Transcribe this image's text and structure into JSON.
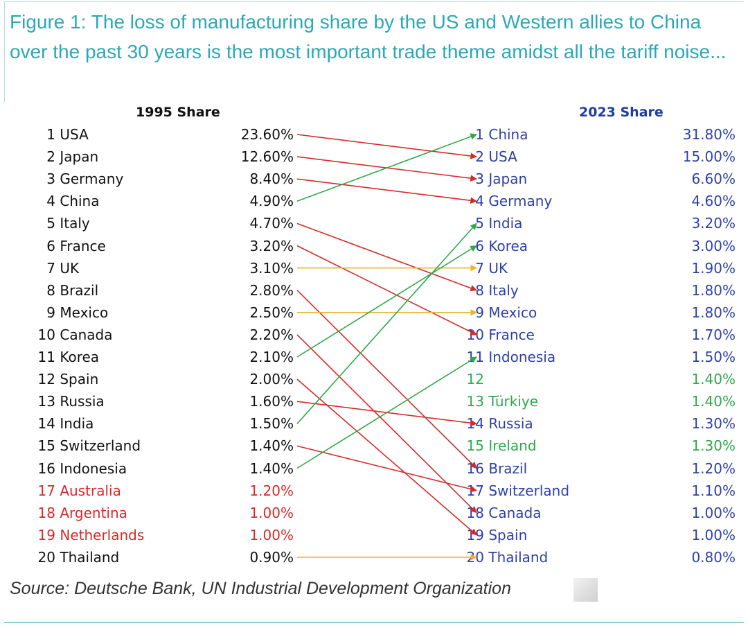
{
  "title": "Figure 1: The loss of manufacturing share by the US and Western allies to China over the past 30 years is the most important trade theme amidst all the tariff noise...",
  "source": "Source: Deutsche Bank, UN Industrial Development Organization",
  "chart_data": {
    "type": "slope-ranking",
    "left_title": "1995 Share",
    "right_title": "2023 Share",
    "colors": {
      "dark": "#111111",
      "red": "#d62a2a",
      "blue": "#2d3fa8",
      "green": "#2ea84a",
      "rise": "#2ea84a",
      "fall": "#d62a2a",
      "flat": "#e8b62a"
    },
    "left": [
      {
        "rank": "1",
        "country": "USA",
        "share": "23.60%",
        "color": "dark"
      },
      {
        "rank": "2",
        "country": "Japan",
        "share": "12.60%",
        "color": "dark"
      },
      {
        "rank": "3",
        "country": "Germany",
        "share": "8.40%",
        "color": "dark"
      },
      {
        "rank": "4",
        "country": "China",
        "share": "4.90%",
        "color": "dark"
      },
      {
        "rank": "5",
        "country": "Italy",
        "share": "4.70%",
        "color": "dark"
      },
      {
        "rank": "6",
        "country": "France",
        "share": "3.20%",
        "color": "dark"
      },
      {
        "rank": "7",
        "country": "UK",
        "share": "3.10%",
        "color": "dark"
      },
      {
        "rank": "8",
        "country": "Brazil",
        "share": "2.80%",
        "color": "dark"
      },
      {
        "rank": "9",
        "country": "Mexico",
        "share": "2.50%",
        "color": "dark"
      },
      {
        "rank": "10",
        "country": "Canada",
        "share": "2.20%",
        "color": "dark"
      },
      {
        "rank": "11",
        "country": "Korea",
        "share": "2.10%",
        "color": "dark"
      },
      {
        "rank": "12",
        "country": "Spain",
        "share": "2.00%",
        "color": "dark"
      },
      {
        "rank": "13",
        "country": "Russia",
        "share": "1.60%",
        "color": "dark"
      },
      {
        "rank": "14",
        "country": "India",
        "share": "1.50%",
        "color": "dark"
      },
      {
        "rank": "15",
        "country": "Switzerland",
        "share": "1.40%",
        "color": "dark"
      },
      {
        "rank": "16",
        "country": "Indonesia",
        "share": "1.40%",
        "color": "dark"
      },
      {
        "rank": "17",
        "country": "Australia",
        "share": "1.20%",
        "color": "red"
      },
      {
        "rank": "18",
        "country": "Argentina",
        "share": "1.00%",
        "color": "red"
      },
      {
        "rank": "19",
        "country": "Netherlands",
        "share": "1.00%",
        "color": "red"
      },
      {
        "rank": "20",
        "country": "Thailand",
        "share": "0.90%",
        "color": "dark"
      }
    ],
    "right": [
      {
        "rank": "1",
        "country": "China",
        "share": "31.80%",
        "color": "blue"
      },
      {
        "rank": "2",
        "country": "USA",
        "share": "15.00%",
        "color": "blue"
      },
      {
        "rank": "3",
        "country": "Japan",
        "share": "6.60%",
        "color": "blue"
      },
      {
        "rank": "4",
        "country": "Germany",
        "share": "4.60%",
        "color": "blue"
      },
      {
        "rank": "5",
        "country": "India",
        "share": "3.20%",
        "color": "blue"
      },
      {
        "rank": "6",
        "country": "Korea",
        "share": "3.00%",
        "color": "blue"
      },
      {
        "rank": "7",
        "country": "UK",
        "share": "1.90%",
        "color": "blue"
      },
      {
        "rank": "8",
        "country": "Italy",
        "share": "1.80%",
        "color": "blue"
      },
      {
        "rank": "9",
        "country": "Mexico",
        "share": "1.80%",
        "color": "blue"
      },
      {
        "rank": "10",
        "country": "France",
        "share": "1.70%",
        "color": "blue"
      },
      {
        "rank": "11",
        "country": "Indonesia",
        "share": "1.50%",
        "color": "blue"
      },
      {
        "rank": "12",
        "country": "",
        "share": "1.40%",
        "color": "green"
      },
      {
        "rank": "13",
        "country": "Türkiye",
        "share": "1.40%",
        "color": "green"
      },
      {
        "rank": "14",
        "country": "Russia",
        "share": "1.30%",
        "color": "blue"
      },
      {
        "rank": "15",
        "country": "Ireland",
        "share": "1.30%",
        "color": "green"
      },
      {
        "rank": "16",
        "country": "Brazil",
        "share": "1.20%",
        "color": "blue"
      },
      {
        "rank": "17",
        "country": "Switzerland",
        "share": "1.10%",
        "color": "blue"
      },
      {
        "rank": "18",
        "country": "Canada",
        "share": "1.00%",
        "color": "blue"
      },
      {
        "rank": "19",
        "country": "Spain",
        "share": "1.00%",
        "color": "blue"
      },
      {
        "rank": "20",
        "country": "Thailand",
        "share": "0.80%",
        "color": "blue"
      }
    ],
    "links": [
      {
        "country": "USA",
        "from_rank": 1,
        "to_rank": 2,
        "change": "fall"
      },
      {
        "country": "Japan",
        "from_rank": 2,
        "to_rank": 3,
        "change": "fall"
      },
      {
        "country": "Germany",
        "from_rank": 3,
        "to_rank": 4,
        "change": "fall"
      },
      {
        "country": "China",
        "from_rank": 4,
        "to_rank": 1,
        "change": "rise"
      },
      {
        "country": "Italy",
        "from_rank": 5,
        "to_rank": 8,
        "change": "fall"
      },
      {
        "country": "France",
        "from_rank": 6,
        "to_rank": 10,
        "change": "fall"
      },
      {
        "country": "UK",
        "from_rank": 7,
        "to_rank": 7,
        "change": "flat"
      },
      {
        "country": "Brazil",
        "from_rank": 8,
        "to_rank": 16,
        "change": "fall"
      },
      {
        "country": "Mexico",
        "from_rank": 9,
        "to_rank": 9,
        "change": "flat"
      },
      {
        "country": "Canada",
        "from_rank": 10,
        "to_rank": 18,
        "change": "fall"
      },
      {
        "country": "Korea",
        "from_rank": 11,
        "to_rank": 6,
        "change": "rise"
      },
      {
        "country": "Spain",
        "from_rank": 12,
        "to_rank": 19,
        "change": "fall"
      },
      {
        "country": "Russia",
        "from_rank": 13,
        "to_rank": 14,
        "change": "fall"
      },
      {
        "country": "India",
        "from_rank": 14,
        "to_rank": 5,
        "change": "rise"
      },
      {
        "country": "Switzerland",
        "from_rank": 15,
        "to_rank": 17,
        "change": "fall"
      },
      {
        "country": "Indonesia",
        "from_rank": 16,
        "to_rank": 11,
        "change": "rise"
      },
      {
        "country": "Thailand",
        "from_rank": 20,
        "to_rank": 20,
        "change": "flat"
      }
    ]
  }
}
